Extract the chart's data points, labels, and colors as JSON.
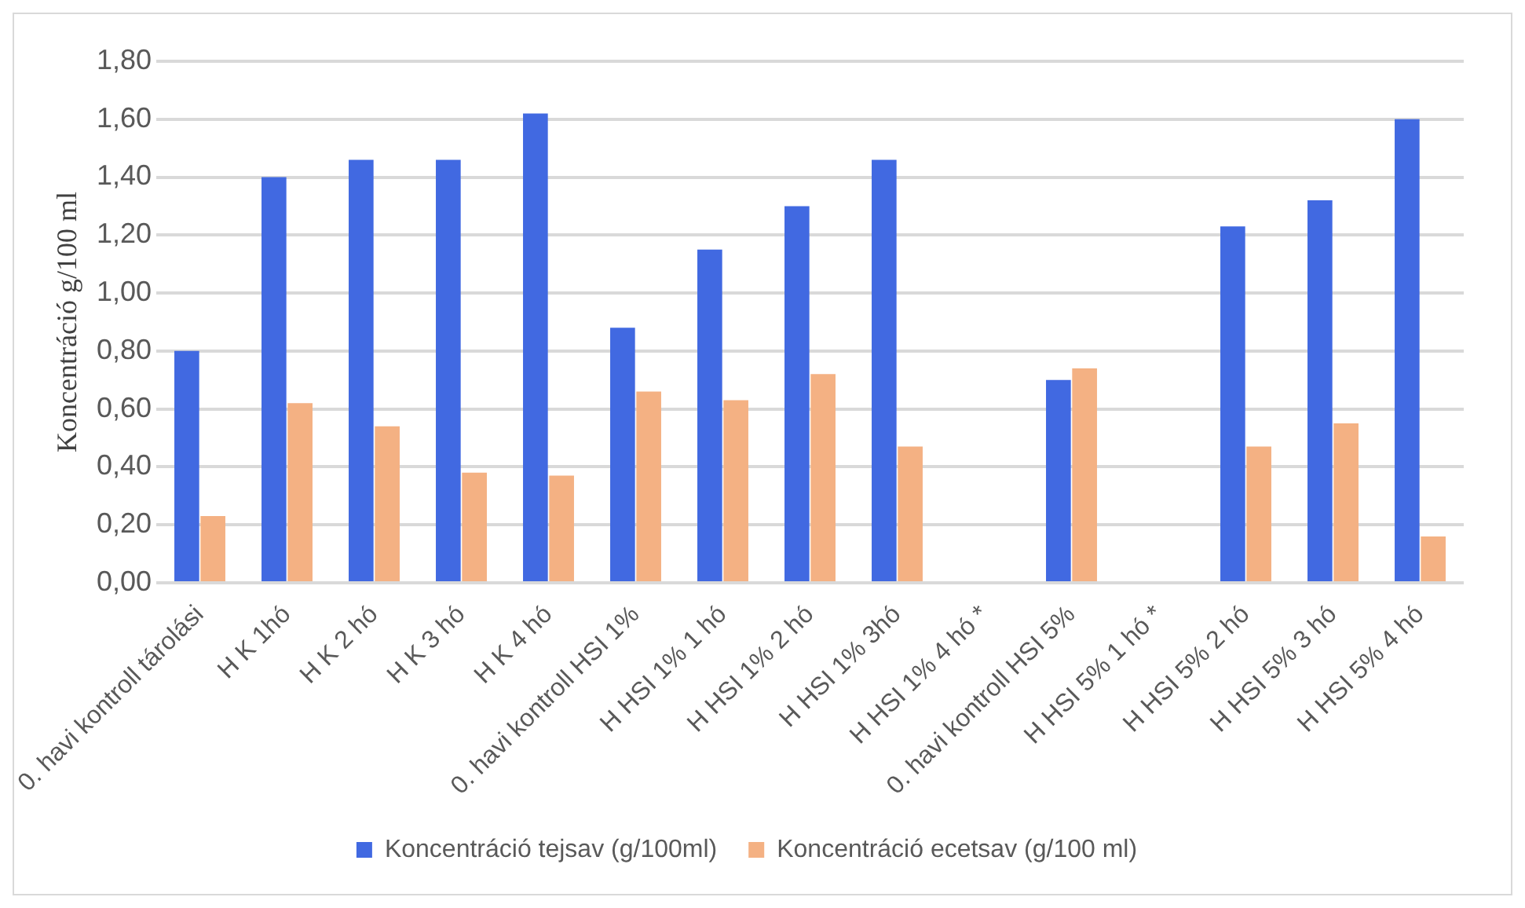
{
  "chart_data": {
    "type": "bar",
    "ylabel": "Koncentráció g/100 ml",
    "categories": [
      "0. havi kontroll tárolási",
      "H K 1hó",
      "H K 2 hó",
      "H K 3 hó",
      "H K 4 hó",
      "0. havi kontroll HSI 1%",
      "H HSI 1% 1 hó",
      "H HSI 1% 2 hó",
      "H HSI 1% 3hó",
      "H HSI 1% 4 hó *",
      "0. havi kontroll HSI 5%",
      "H HSI 5% 1 hó *",
      "H HSI 5% 2 hó",
      "H HSI 5% 3 hó",
      "H HSI 5% 4 hó"
    ],
    "series": [
      {
        "name": "Koncentráció tejsav (g/100ml)",
        "color": "#4169e1",
        "values": [
          0.8,
          1.4,
          1.46,
          1.46,
          1.62,
          0.88,
          1.15,
          1.3,
          1.46,
          0,
          0.7,
          0,
          1.23,
          1.32,
          1.6
        ]
      },
      {
        "name": "Koncentráció ecetsav (g/100 ml)",
        "color": "#f4b183",
        "values": [
          0.23,
          0.62,
          0.54,
          0.38,
          0.37,
          0.66,
          0.63,
          0.72,
          0.47,
          0,
          0.74,
          0,
          0.47,
          0.55,
          0.16
        ]
      }
    ],
    "ylim": [
      0,
      1.8
    ],
    "yticks": [
      {
        "value": 0,
        "label": "0,00"
      },
      {
        "value": 0.2,
        "label": "0,20"
      },
      {
        "value": 0.4,
        "label": "0,40"
      },
      {
        "value": 0.6,
        "label": "0,60"
      },
      {
        "value": 0.8,
        "label": "0,80"
      },
      {
        "value": 1,
        "label": "1,00"
      },
      {
        "value": 1.2,
        "label": "1,20"
      },
      {
        "value": 1.4,
        "label": "1,40"
      },
      {
        "value": 1.6,
        "label": "1,60"
      },
      {
        "value": 1.8,
        "label": "1,80"
      }
    ],
    "grid": "y",
    "legend": "bottom"
  }
}
